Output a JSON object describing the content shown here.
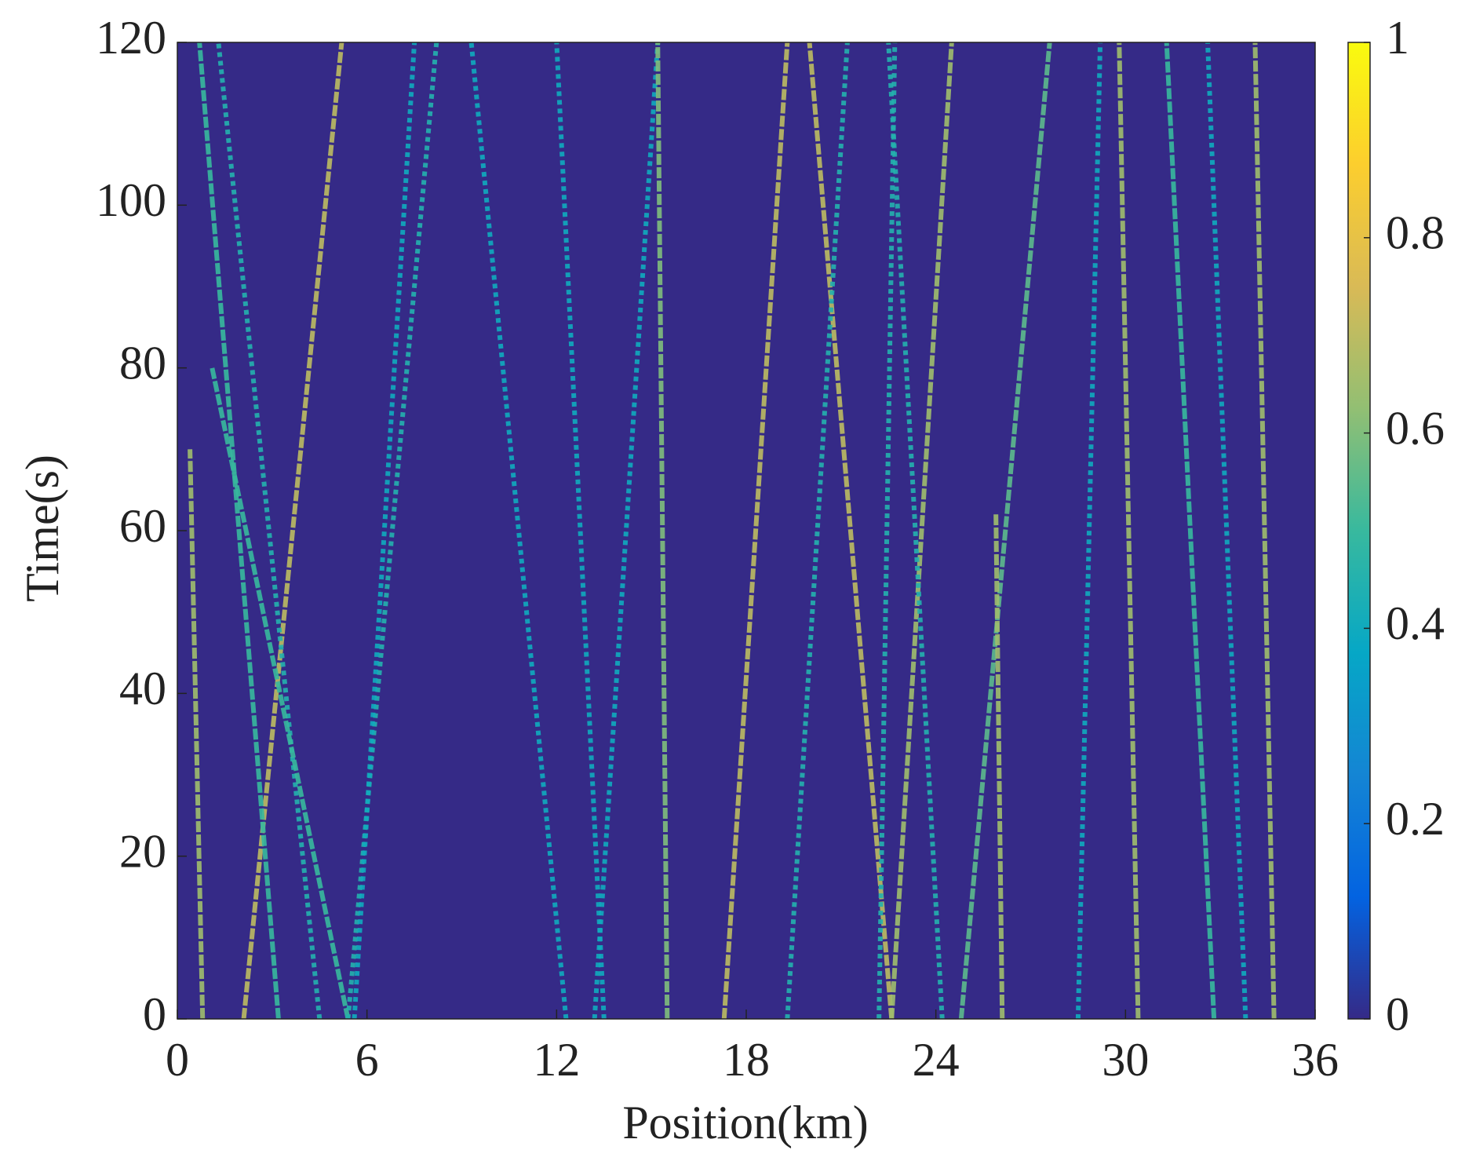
{
  "chart_data": {
    "type": "trajectory-heatmap",
    "xlabel": "Position(km)",
    "ylabel": "Time(s)",
    "xlim": [
      0,
      36
    ],
    "xticks": [
      0,
      6,
      12,
      18,
      24,
      30,
      36
    ],
    "ylim": [
      0,
      120
    ],
    "yticks": [
      0,
      20,
      40,
      60,
      80,
      100,
      120
    ],
    "clim": [
      0,
      1
    ],
    "cticks": [
      0,
      0.2,
      0.4,
      0.6,
      0.8,
      1
    ],
    "colormap": [
      "#352a87",
      "#0363e1",
      "#1485d4",
      "#06a7c6",
      "#38b99e",
      "#92bf73",
      "#d9ba56",
      "#fcce2e",
      "#f9fb0e"
    ],
    "trajectories": [
      {
        "position": [
          2.1,
          5.2
        ],
        "time": [
          0,
          120
        ],
        "intensity": 0.7
      },
      {
        "position": [
          3.2,
          0.7
        ],
        "time": [
          0,
          120
        ],
        "intensity": 0.5
      },
      {
        "position": [
          4.5,
          1.3
        ],
        "time": [
          0,
          120
        ],
        "intensity": 0.45
      },
      {
        "position": [
          5.4,
          1.1
        ],
        "time": [
          0,
          80
        ],
        "intensity": 0.5
      },
      {
        "position": [
          0.8,
          0.4
        ],
        "time": [
          0,
          70
        ],
        "intensity": 0.65
      },
      {
        "position": [
          5.4,
          8.2
        ],
        "time": [
          0,
          120
        ],
        "intensity": 0.45
      },
      {
        "position": [
          5.6,
          7.5
        ],
        "time": [
          0,
          120
        ],
        "intensity": 0.4
      },
      {
        "position": [
          12.3,
          9.3
        ],
        "time": [
          0,
          120
        ],
        "intensity": 0.4
      },
      {
        "position": [
          13.5,
          12
        ],
        "time": [
          0,
          120
        ],
        "intensity": 0.4
      },
      {
        "position": [
          13.2,
          15.2
        ],
        "time": [
          0,
          120
        ],
        "intensity": 0.4
      },
      {
        "position": [
          15.5,
          15.2
        ],
        "time": [
          0,
          120
        ],
        "intensity": 0.6
      },
      {
        "position": [
          17.3,
          19.3
        ],
        "time": [
          0,
          120
        ],
        "intensity": 0.7
      },
      {
        "position": [
          22.6,
          20
        ],
        "time": [
          0,
          120
        ],
        "intensity": 0.7
      },
      {
        "position": [
          22.6,
          24.5
        ],
        "time": [
          0,
          120
        ],
        "intensity": 0.65
      },
      {
        "position": [
          24.8,
          27.6
        ],
        "time": [
          0,
          120
        ],
        "intensity": 0.55
      },
      {
        "position": [
          26.1,
          25.9
        ],
        "time": [
          0,
          62
        ],
        "intensity": 0.65
      },
      {
        "position": [
          30.4,
          29.8
        ],
        "time": [
          0,
          120
        ],
        "intensity": 0.65
      },
      {
        "position": [
          32.8,
          31.3
        ],
        "time": [
          0,
          120
        ],
        "intensity": 0.5
      },
      {
        "position": [
          34.7,
          34.1
        ],
        "time": [
          0,
          120
        ],
        "intensity": 0.65
      },
      {
        "position": [
          33.8,
          32.6
        ],
        "time": [
          0,
          120
        ],
        "intensity": 0.4
      },
      {
        "position": [
          19.3,
          21.2
        ],
        "time": [
          0,
          120
        ],
        "intensity": 0.45
      },
      {
        "position": [
          22.2,
          22.7
        ],
        "time": [
          0,
          120
        ],
        "intensity": 0.45
      },
      {
        "position": [
          28.5,
          29.2
        ],
        "time": [
          0,
          120
        ],
        "intensity": 0.4
      },
      {
        "position": [
          24.2,
          22.5
        ],
        "time": [
          0,
          120
        ],
        "intensity": 0.45
      }
    ]
  }
}
